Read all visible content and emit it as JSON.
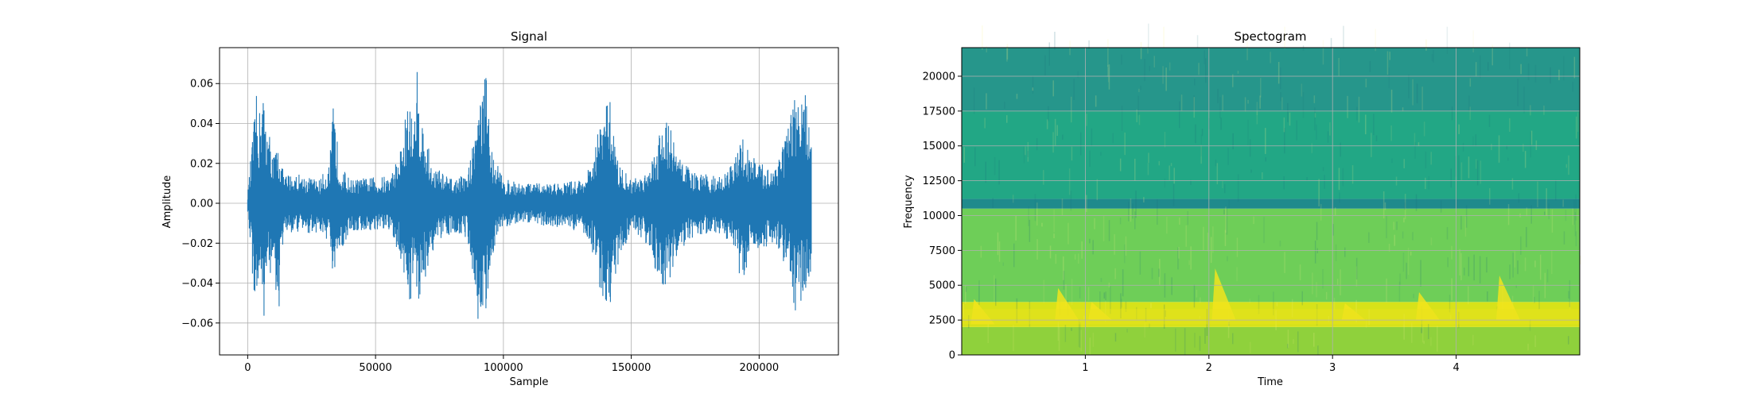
{
  "chart_data": [
    {
      "type": "line",
      "title": "Signal",
      "xlabel": "Sample",
      "ylabel": "Amplitude",
      "xlim": [
        -11000,
        231000
      ],
      "ylim": [
        -0.076,
        0.078
      ],
      "xticks": [
        0,
        50000,
        100000,
        150000,
        200000
      ],
      "xtick_labels": [
        "0",
        "50000",
        "100000",
        "150000",
        "200000"
      ],
      "yticks": [
        -0.06,
        -0.04,
        -0.02,
        0.0,
        0.02,
        0.04,
        0.06
      ],
      "ytick_labels": [
        "−0.06",
        "−0.04",
        "−0.02",
        "0.00",
        "0.02",
        "0.04",
        "0.06"
      ],
      "grid": true,
      "series_color": "#1f77b4",
      "sample_count": 220500,
      "envelope": {
        "x": [
          0,
          2000,
          3500,
          4500,
          5500,
          7000,
          8000,
          10000,
          12000,
          14000,
          20000,
          28000,
          32000,
          33500,
          36000,
          40000,
          48000,
          56000,
          60000,
          63000,
          65000,
          66500,
          68000,
          72000,
          80000,
          86000,
          89000,
          90000,
          92000,
          93500,
          95000,
          100000,
          110000,
          120000,
          130000,
          135000,
          138000,
          140000,
          142000,
          145000,
          150000,
          155000,
          160000,
          163000,
          165000,
          168000,
          175000,
          185000,
          190000,
          193000,
          196000,
          200000,
          205000,
          212000,
          214000,
          216000,
          218000,
          219000,
          220500
        ],
        "upper": [
          0.005,
          0.035,
          0.055,
          0.045,
          0.063,
          0.045,
          0.04,
          0.025,
          0.03,
          0.015,
          0.015,
          0.012,
          0.02,
          0.05,
          0.02,
          0.012,
          0.013,
          0.014,
          0.03,
          0.055,
          0.04,
          0.072,
          0.045,
          0.02,
          0.012,
          0.015,
          0.04,
          0.055,
          0.06,
          0.068,
          0.03,
          0.012,
          0.01,
          0.01,
          0.012,
          0.02,
          0.045,
          0.05,
          0.052,
          0.02,
          0.012,
          0.015,
          0.03,
          0.05,
          0.04,
          0.025,
          0.015,
          0.014,
          0.02,
          0.035,
          0.028,
          0.02,
          0.018,
          0.04,
          0.06,
          0.05,
          0.055,
          0.045,
          0.04
        ],
        "lower": [
          -0.005,
          -0.04,
          -0.058,
          -0.045,
          -0.068,
          -0.05,
          -0.04,
          -0.03,
          -0.062,
          -0.015,
          -0.015,
          -0.015,
          -0.02,
          -0.047,
          -0.025,
          -0.015,
          -0.014,
          -0.015,
          -0.03,
          -0.05,
          -0.045,
          -0.052,
          -0.045,
          -0.025,
          -0.014,
          -0.018,
          -0.045,
          -0.058,
          -0.06,
          -0.055,
          -0.028,
          -0.012,
          -0.01,
          -0.012,
          -0.014,
          -0.025,
          -0.045,
          -0.05,
          -0.053,
          -0.03,
          -0.014,
          -0.018,
          -0.035,
          -0.048,
          -0.04,
          -0.025,
          -0.017,
          -0.015,
          -0.022,
          -0.04,
          -0.03,
          -0.025,
          -0.02,
          -0.035,
          -0.055,
          -0.05,
          -0.045,
          -0.04,
          -0.035
        ]
      }
    },
    {
      "type": "heatmap",
      "title": "Spectogram",
      "xlabel": "Time",
      "ylabel": "Frequency",
      "xlim": [
        0.0,
        5.0
      ],
      "ylim": [
        0,
        22050
      ],
      "xticks": [
        1,
        2,
        3,
        4
      ],
      "xtick_labels": [
        "1",
        "2",
        "3",
        "4"
      ],
      "yticks": [
        0,
        2500,
        5000,
        7500,
        10000,
        12500,
        15000,
        17500,
        20000
      ],
      "ytick_labels": [
        "0",
        "2500",
        "5000",
        "7500",
        "10000",
        "12500",
        "15000",
        "17500",
        "20000"
      ],
      "grid": true,
      "colormap": "viridis",
      "frequency_bands": [
        {
          "from": 0,
          "to": 2000,
          "color": "#8fd13c"
        },
        {
          "from": 2000,
          "to": 3800,
          "color": "#d7e219"
        },
        {
          "from": 3800,
          "to": 10500,
          "color": "#6ece58"
        },
        {
          "from": 10500,
          "to": 11200,
          "color": "#1f8a8c"
        },
        {
          "from": 11200,
          "to": 17500,
          "color": "#22a785"
        },
        {
          "from": 17500,
          "to": 22050,
          "color": "#26968b"
        }
      ],
      "bright_events": [
        {
          "time": 0.1,
          "freq_low": 2200,
          "freq_high": 4000
        },
        {
          "time": 0.78,
          "freq_low": 2500,
          "freq_high": 4800
        },
        {
          "time": 1.05,
          "freq_low": 2500,
          "freq_high": 3800
        },
        {
          "time": 2.05,
          "freq_low": 2500,
          "freq_high": 6200
        },
        {
          "time": 3.1,
          "freq_low": 2500,
          "freq_high": 3700
        },
        {
          "time": 3.7,
          "freq_low": 2500,
          "freq_high": 4500
        },
        {
          "time": 4.35,
          "freq_low": 2500,
          "freq_high": 5700
        }
      ]
    }
  ]
}
